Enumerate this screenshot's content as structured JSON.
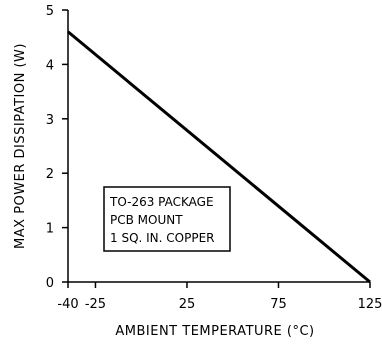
{
  "chart_data": {
    "type": "line",
    "title": "",
    "xlabel": "AMBIENT TEMPERATURE (°C)",
    "ylabel": "MAX POWER DISSIPATION (W)",
    "xlim": [
      -40,
      125
    ],
    "ylim": [
      0,
      5
    ],
    "x_ticks": [
      -40,
      -25,
      25,
      75,
      125
    ],
    "y_ticks": [
      0,
      1,
      2,
      3,
      4,
      5
    ],
    "grid": false,
    "series": [
      {
        "x": [
          -40,
          125
        ],
        "y": [
          4.6,
          0
        ]
      }
    ],
    "annotation": [
      "TO-263 PACKAGE",
      "PCB MOUNT",
      "1 SQ. IN. COPPER"
    ]
  }
}
